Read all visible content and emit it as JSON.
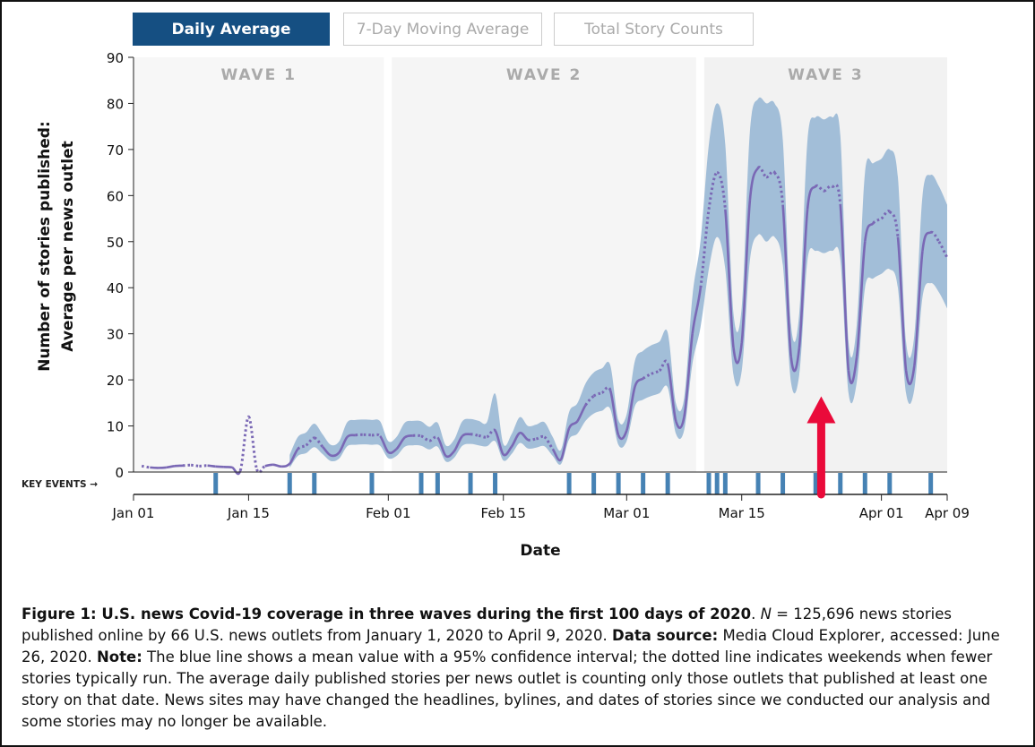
{
  "toggle": {
    "buttons": [
      {
        "label": "Daily Average",
        "active": true
      },
      {
        "label": "7-Day Moving Average",
        "active": false
      },
      {
        "label": "Total Story Counts",
        "active": false
      }
    ]
  },
  "chart_data": {
    "type": "line",
    "ylabel_lines": [
      "Number of stories published:",
      "Average per news outlet"
    ],
    "xlabel": "Date",
    "ylim": [
      0,
      90
    ],
    "yticks": [
      0,
      10,
      20,
      30,
      40,
      50,
      60,
      70,
      80,
      90
    ],
    "xlim": [
      "2020-01-01",
      "2020-04-09"
    ],
    "xticks": [
      {
        "date": "2020-01-01",
        "label": "Jan 01"
      },
      {
        "date": "2020-01-15",
        "label": "Jan 15"
      },
      {
        "date": "2020-02-01",
        "label": "Feb 01"
      },
      {
        "date": "2020-02-15",
        "label": "Feb 15"
      },
      {
        "date": "2020-03-01",
        "label": "Mar 01"
      },
      {
        "date": "2020-03-15",
        "label": "Mar 15"
      },
      {
        "date": "2020-04-01",
        "label": "Apr 01"
      },
      {
        "date": "2020-04-09",
        "label": "Apr 09"
      }
    ],
    "dates": {
      "first": "2020-01-02",
      "last": "2020-04-09",
      "step_days": 1
    },
    "series": [
      {
        "kind": "mean",
        "color": "#7a68b5",
        "values": [
          1.3,
          1.0,
          0.9,
          1.0,
          1.3,
          1.4,
          1.5,
          1.3,
          1.4,
          1.2,
          1.1,
          1.0,
          0.3,
          12,
          0.6,
          1.3,
          1.6,
          1.2,
          1.8,
          5,
          5.8,
          7.4,
          5.5,
          3.6,
          4.2,
          7.6,
          8,
          8.1,
          8,
          7.8,
          4.3,
          5,
          7.5,
          7.9,
          7.8,
          6.8,
          7.5,
          3.5,
          4.5,
          7.8,
          8.2,
          7.9,
          7.6,
          9,
          3.8,
          5.5,
          8.5,
          7,
          7.2,
          7.6,
          5,
          2.7,
          9.5,
          11,
          14.5,
          16.5,
          17.2,
          17.8,
          8,
          9,
          18.5,
          20.3,
          21.3,
          22,
          23.5,
          11,
          12,
          30,
          40,
          57,
          65,
          57,
          27,
          28,
          59,
          66,
          64,
          65,
          58,
          25,
          27,
          57,
          62,
          61,
          62,
          58,
          22,
          25,
          50,
          54,
          55,
          56.5,
          51,
          22,
          23,
          48,
          52,
          50,
          46.5
        ]
      },
      {
        "kind": "ci_lower",
        "color": "#9dbbd6",
        "values": [
          null,
          null,
          null,
          null,
          null,
          null,
          null,
          null,
          null,
          null,
          null,
          null,
          null,
          null,
          null,
          null,
          null,
          null,
          0.9,
          3.5,
          4.1,
          5.4,
          3.9,
          2.4,
          2.9,
          5.6,
          5.9,
          6,
          5.9,
          5.7,
          3,
          3.5,
          5.5,
          5.8,
          5.7,
          4.9,
          5.5,
          2.3,
          3.1,
          5.7,
          6.1,
          5.8,
          5.6,
          6.7,
          2.5,
          3.9,
          6.3,
          5.1,
          5.3,
          5.6,
          3.5,
          1.7,
          7.1,
          8.3,
          11.1,
          12.7,
          13.3,
          13.7,
          5.9,
          6.7,
          14.3,
          15.7,
          16.5,
          17.1,
          18.3,
          8.3,
          9.1,
          23.5,
          31.5,
          44,
          51,
          44,
          21.1,
          21.9,
          46,
          51.5,
          50,
          51,
          45,
          19.5,
          21.1,
          46,
          48,
          47.5,
          48,
          46,
          17.1,
          19.5,
          40,
          42,
          43,
          44,
          40,
          17.1,
          17.9,
          38,
          41,
          39,
          35.5
        ]
      },
      {
        "kind": "ci_upper",
        "color": "#9dbbd6",
        "values": [
          null,
          null,
          null,
          null,
          null,
          null,
          null,
          null,
          null,
          null,
          null,
          null,
          null,
          null,
          null,
          null,
          null,
          null,
          3.7,
          7.6,
          8.6,
          10.5,
          8.2,
          5.9,
          6.6,
          10.8,
          11.3,
          11.4,
          11.3,
          11,
          6.7,
          7.6,
          10.7,
          11.1,
          11,
          9.8,
          10.7,
          5.8,
          7,
          11,
          11.5,
          11.1,
          10.8,
          17,
          6.1,
          8.2,
          11.9,
          10,
          10.3,
          10.8,
          7.6,
          4.8,
          13,
          14.9,
          19.2,
          21.6,
          22.5,
          23.2,
          11.3,
          12.5,
          24.1,
          26.3,
          27.5,
          28.3,
          30.2,
          14.9,
          16.1,
          38.1,
          50.3,
          71,
          80,
          71,
          34.4,
          35.7,
          74,
          81,
          80,
          80,
          72,
          32,
          34.4,
          72,
          77,
          76.5,
          77,
          73,
          28.3,
          32,
          65,
          67,
          68,
          70,
          64,
          28.3,
          29.6,
          60,
          64.5,
          62,
          58
        ]
      }
    ],
    "line_style": {
      "weekday": "solid",
      "weekend": "dotted"
    },
    "waves": [
      {
        "label": "WAVE 1",
        "start": "2020-01-01",
        "end": "2020-01-31",
        "color": "#f7f7f7"
      },
      {
        "label": "WAVE 2",
        "start": "2020-02-01",
        "end": "2020-03-09",
        "color": "#f5f5f5"
      },
      {
        "label": "WAVE 3",
        "start": "2020-03-10",
        "end": "2020-04-09",
        "color": "#f2f2f2"
      }
    ],
    "key_events_label": "KEY EVENTS →",
    "key_events_color": "#4682b4",
    "key_events": [
      "2020-01-11",
      "2020-01-20",
      "2020-01-23",
      "2020-01-30",
      "2020-02-05",
      "2020-02-07",
      "2020-02-11",
      "2020-02-14",
      "2020-02-23",
      "2020-02-26",
      "2020-02-29",
      "2020-03-03",
      "2020-03-06",
      "2020-03-11",
      "2020-03-12",
      "2020-03-13",
      "2020-03-17",
      "2020-03-20",
      "2020-03-24",
      "2020-03-27",
      "2020-03-30",
      "2020-04-02",
      "2020-04-07"
    ],
    "annotation": {
      "type": "arrow",
      "color": "#ea0a3a",
      "date": "2020-03-25",
      "points_to_value": 17
    }
  },
  "caption": {
    "title": "Figure 1: U.S. news Covid-19 coverage in three waves during the first 100 days of 2020",
    "n_label": "N",
    "n_text": " = 125,696 news stories published online by 66 U.S. news outlets from January 1, 2020 to April 9, 2020. ",
    "source_label": "Data source:",
    "source_text": " Media Cloud Explorer, accessed: June 26, 2020. ",
    "note_label": "Note:",
    "note_text": " The blue line shows a mean value with a 95% confidence interval; the dotted line indicates weekends when fewer stories typically run. The average daily published stories per news outlet is counting only those outlets that published at least one story on that date. News sites may have changed the headlines, bylines, and dates of stories since we conducted our analysis and some stories may no longer be available."
  }
}
